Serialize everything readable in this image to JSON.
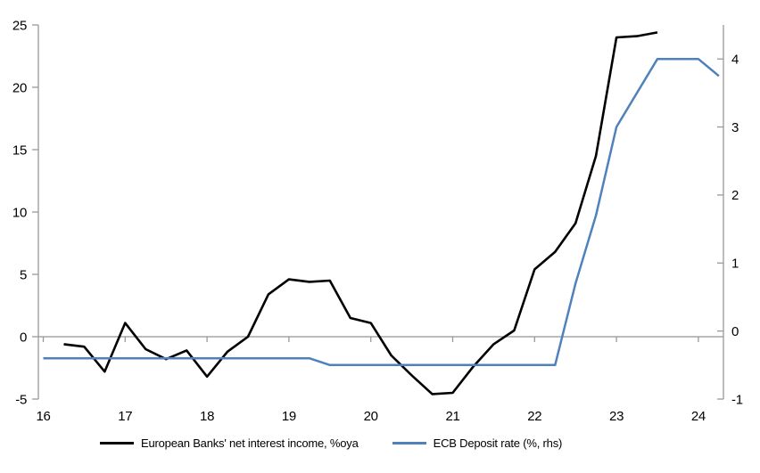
{
  "chart_data": {
    "type": "line",
    "title": "",
    "background": "#ffffff",
    "x_axis": {
      "ticks": [
        16,
        17,
        18,
        19,
        20,
        21,
        22,
        23,
        24
      ],
      "min": 16,
      "max": 24.3
    },
    "left_axis": {
      "ticks": [
        25,
        20,
        15,
        10,
        5,
        0,
        -5
      ],
      "min": -5,
      "max": 25
    },
    "right_axis": {
      "ticks": [
        4,
        3,
        2,
        1,
        0,
        -1
      ],
      "min": -1,
      "max": 4.5
    },
    "grid": "zero-line-only",
    "legend_position": "bottom",
    "colors": {
      "axis": "#999999",
      "zero_line": "#a6a6a6",
      "text": "#000000",
      "series1": "#000000",
      "series2": "#4f81bd"
    },
    "series": [
      {
        "name": "European Banks' net interest income, %oya",
        "axis": "left",
        "color": "#000000",
        "stroke_width": 2.6,
        "x": [
          16.25,
          16.5,
          16.75,
          17.0,
          17.25,
          17.5,
          17.75,
          18.0,
          18.25,
          18.5,
          18.75,
          19.0,
          19.25,
          19.5,
          19.75,
          20.0,
          20.25,
          20.5,
          20.75,
          21.0,
          21.25,
          21.5,
          21.75,
          22.0,
          22.25,
          22.5,
          22.75,
          23.0,
          23.25,
          23.5
        ],
        "values": [
          -0.6,
          -0.8,
          -2.8,
          1.1,
          -1.0,
          -1.8,
          -1.1,
          -3.2,
          -1.2,
          0.0,
          3.4,
          4.6,
          4.4,
          4.5,
          1.5,
          1.1,
          -1.5,
          -3.1,
          -4.6,
          -4.5,
          -2.4,
          -0.6,
          0.5,
          5.4,
          6.8,
          9.1,
          14.5,
          24.0,
          24.1,
          24.4
        ]
      },
      {
        "name": "ECB Deposit rate (%, rhs)",
        "axis": "right",
        "color": "#4f81bd",
        "stroke_width": 2.5,
        "x": [
          16.0,
          16.25,
          16.5,
          16.75,
          17.0,
          17.25,
          17.5,
          17.75,
          18.0,
          18.25,
          18.5,
          18.75,
          19.0,
          19.25,
          19.5,
          19.75,
          20.0,
          20.25,
          20.5,
          20.75,
          21.0,
          21.25,
          21.5,
          21.75,
          22.0,
          22.25,
          22.5,
          22.75,
          23.0,
          23.25,
          23.5,
          23.75,
          24.0,
          24.25
        ],
        "values": [
          -0.4,
          -0.4,
          -0.4,
          -0.4,
          -0.4,
          -0.4,
          -0.4,
          -0.4,
          -0.4,
          -0.4,
          -0.4,
          -0.4,
          -0.4,
          -0.4,
          -0.5,
          -0.5,
          -0.5,
          -0.5,
          -0.5,
          -0.5,
          -0.5,
          -0.5,
          -0.5,
          -0.5,
          -0.5,
          -0.5,
          0.7,
          1.7,
          3.0,
          3.5,
          4.0,
          4.0,
          4.0,
          3.75
        ]
      }
    ]
  },
  "legend": {
    "items": [
      {
        "label": "European Banks' net interest income, %oya"
      },
      {
        "label": "ECB Deposit rate (%, rhs)"
      }
    ]
  }
}
